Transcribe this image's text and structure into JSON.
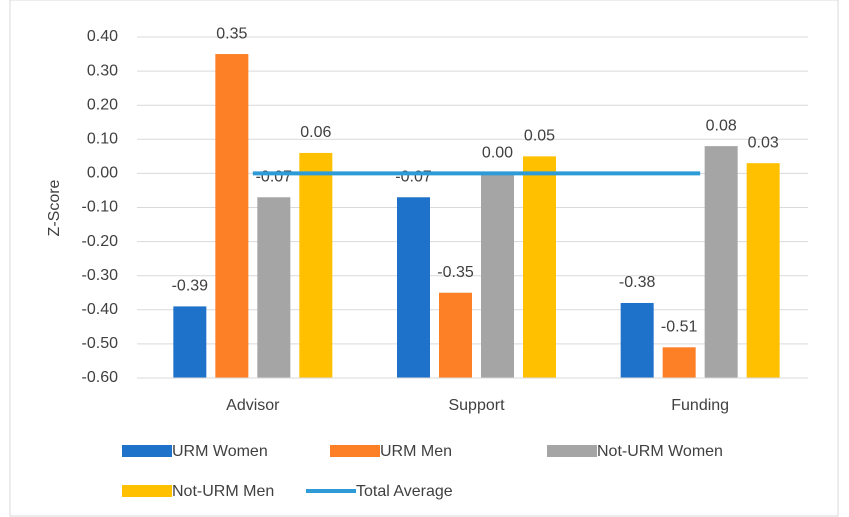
{
  "chart_data": {
    "type": "bar",
    "y_label": "Z-Score",
    "categories": [
      "Advisor",
      "Support",
      "Funding"
    ],
    "series": [
      {
        "name": "URM Women",
        "color": "#1f72c9",
        "values": [
          -0.39,
          -0.07,
          -0.38
        ],
        "value_labels": [
          "-0.39",
          "-0.07",
          "-0.38"
        ]
      },
      {
        "name": "URM Men",
        "color": "#fd7f26",
        "values": [
          0.35,
          -0.35,
          -0.51
        ],
        "value_labels": [
          "0.35",
          "-0.35",
          "-0.51"
        ]
      },
      {
        "name": "Not-URM Women",
        "color": "#a5a5a5",
        "values": [
          -0.07,
          0.0,
          0.08
        ],
        "value_labels": [
          "-0.07",
          "0.00",
          "0.08"
        ]
      },
      {
        "name": "Not-URM Men",
        "color": "#ffc000",
        "values": [
          0.06,
          0.05,
          0.03
        ],
        "value_labels": [
          "0.06",
          "0.05",
          "0.03"
        ]
      },
      {
        "name": "Total Average",
        "color": "#2e9bd6",
        "type": "line",
        "values": [
          0,
          0,
          0
        ]
      }
    ],
    "ylim": [
      -0.6,
      0.4
    ],
    "yticks": [
      {
        "value": -0.6,
        "label": "-0.60"
      },
      {
        "value": -0.5,
        "label": "-0.50"
      },
      {
        "value": -0.4,
        "label": "-0.40"
      },
      {
        "value": -0.3,
        "label": "-0.30"
      },
      {
        "value": -0.2,
        "label": "-0.20"
      },
      {
        "value": -0.1,
        "label": "-0.10"
      },
      {
        "value": 0,
        "label": "0.00"
      },
      {
        "value": 0.1,
        "label": "0.10"
      },
      {
        "value": 0.2,
        "label": "0.20"
      },
      {
        "value": 0.3,
        "label": "0.30"
      },
      {
        "value": 0.4,
        "label": "0.40"
      }
    ],
    "grid": true
  }
}
